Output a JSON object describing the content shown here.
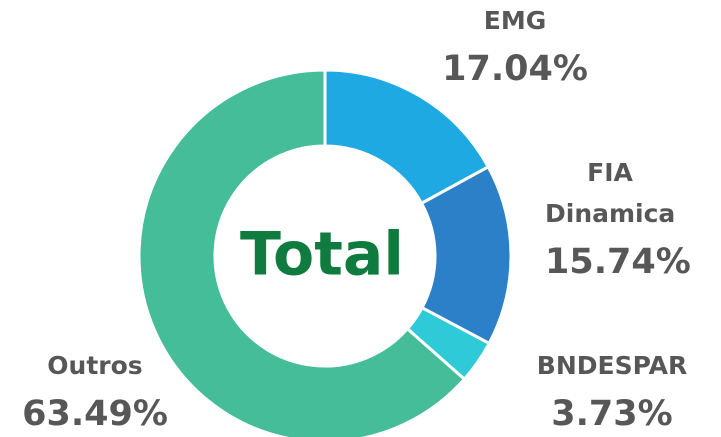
{
  "chart_data": {
    "type": "donut",
    "title": "Total",
    "categories": [
      "EMG",
      "FIA Dinamica",
      "BNDESPAR",
      "Outros"
    ],
    "values": [
      17.04,
      15.74,
      3.73,
      63.49
    ],
    "value_labels": [
      "17.04%",
      "15.74%",
      "3.73%",
      "63.49%"
    ],
    "colors": [
      "#1fa9e3",
      "#2b80c8",
      "#2ecad8",
      "#45bd98"
    ]
  }
}
